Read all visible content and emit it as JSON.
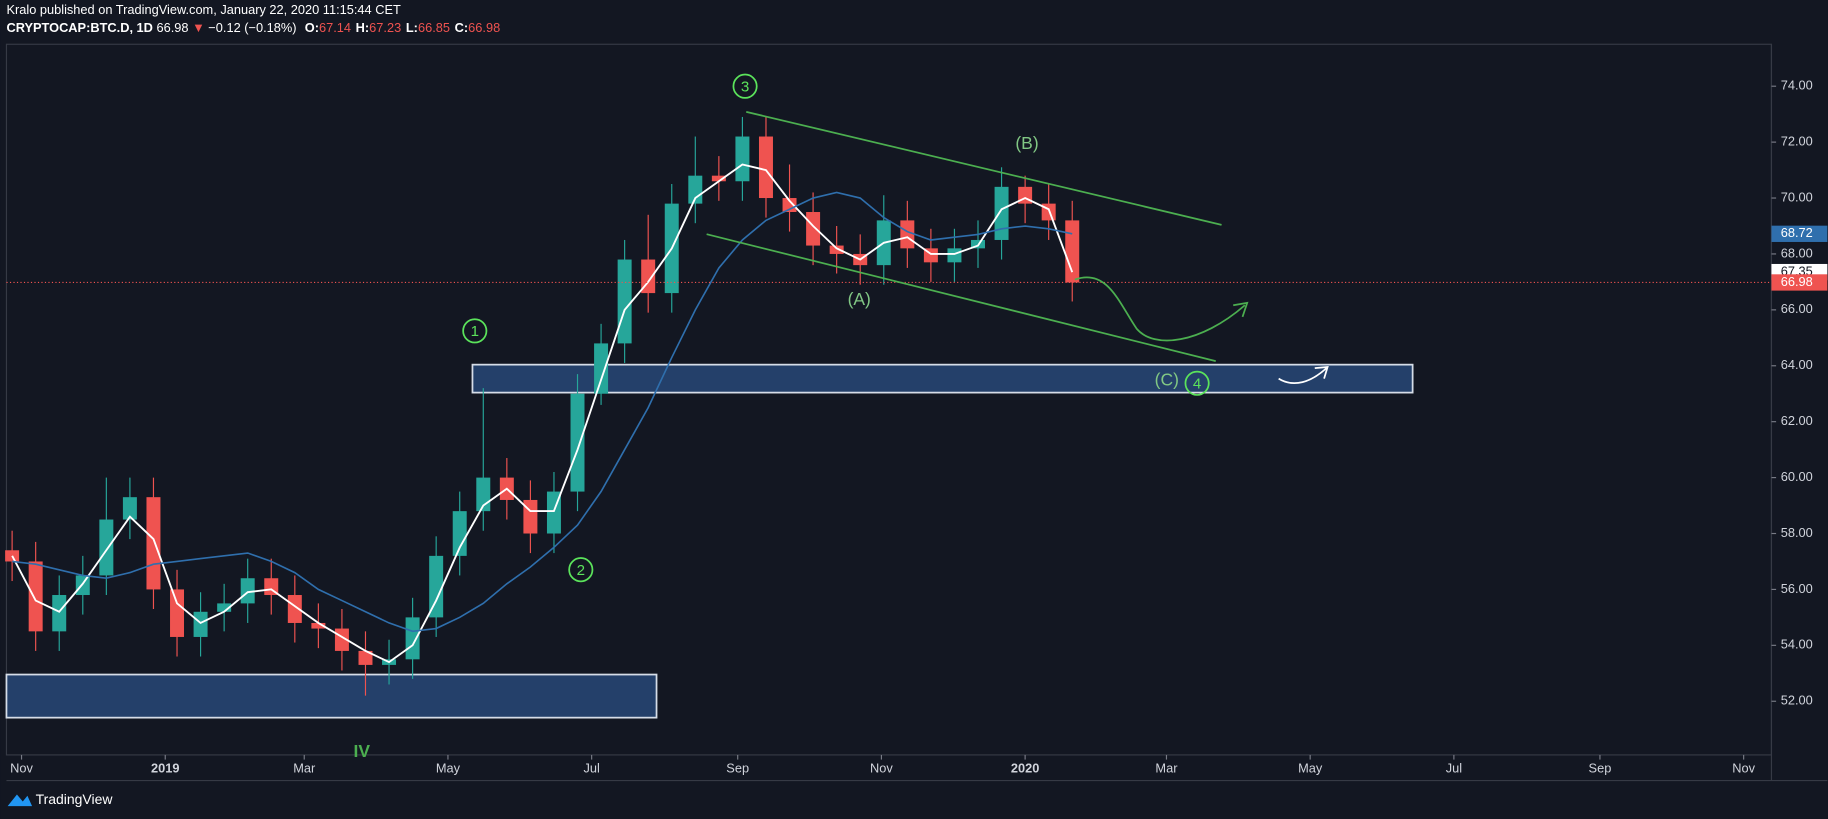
{
  "header": {
    "publisher": "Kralo published on TradingView.com, January 22, 2020 11:15:44 CET",
    "symbol": "CRYPTOCAP:BTC.D, 1D",
    "last": "66.98",
    "arrow": "▼",
    "change": "−0.12 (−0.18%)",
    "ohlc": [
      {
        "label": "O:",
        "value": "67.14"
      },
      {
        "label": "H:",
        "value": "67.23"
      },
      {
        "label": "L:",
        "value": "66.85"
      },
      {
        "label": "C:",
        "value": "66.98"
      }
    ]
  },
  "footer": "TradingView",
  "chart_data": {
    "type": "candlestick",
    "up_color": "#26a69a",
    "down_color": "#ef5350",
    "x": [
      -4,
      6,
      16,
      26,
      36,
      46,
      56,
      66,
      76,
      86,
      96,
      106,
      116,
      126,
      136,
      146,
      156,
      166,
      176,
      186,
      196,
      206,
      216,
      226,
      236,
      246,
      256,
      266,
      276,
      286,
      296,
      306,
      316,
      326,
      336,
      346,
      356,
      366,
      376,
      386,
      396,
      406,
      416,
      426,
      436,
      446
    ],
    "open": [
      57.4,
      57.0,
      54.5,
      55.8,
      56.5,
      58.5,
      59.3,
      56.0,
      54.3,
      55.2,
      55.5,
      56.4,
      55.8,
      54.8,
      54.6,
      53.8,
      53.3,
      53.5,
      55.0,
      57.2,
      58.8,
      60.0,
      59.2,
      58.0,
      59.5,
      63.0,
      64.8,
      67.8,
      66.6,
      69.8,
      70.8,
      70.6,
      72.2,
      70.0,
      69.5,
      68.3,
      68.0,
      67.6,
      69.2,
      68.2,
      67.7,
      68.2,
      68.5,
      70.4,
      69.8,
      69.2
    ],
    "high": [
      58.1,
      57.7,
      56.5,
      57.2,
      60.0,
      60.0,
      60.0,
      56.7,
      55.9,
      56.2,
      57.1,
      57.1,
      56.5,
      55.5,
      55.3,
      54.5,
      54.2,
      55.7,
      57.9,
      59.5,
      63.2,
      60.7,
      59.9,
      60.2,
      63.7,
      65.5,
      68.5,
      69.4,
      70.5,
      72.2,
      71.5,
      72.9,
      72.9,
      71.2,
      70.2,
      69.0,
      68.7,
      70.1,
      69.9,
      68.9,
      68.9,
      69.2,
      71.1,
      70.8,
      70.5,
      69.9
    ],
    "low": [
      56.3,
      53.8,
      53.8,
      55.1,
      55.8,
      57.8,
      55.3,
      53.6,
      53.6,
      54.5,
      54.8,
      55.1,
      54.1,
      53.9,
      53.1,
      52.2,
      52.6,
      52.8,
      54.3,
      56.5,
      58.1,
      58.5,
      57.3,
      57.3,
      58.8,
      62.6,
      64.1,
      65.9,
      65.9,
      69.1,
      69.9,
      69.9,
      69.3,
      68.8,
      67.6,
      67.3,
      66.9,
      66.9,
      67.5,
      67.0,
      67.0,
      67.5,
      67.8,
      69.1,
      68.5,
      66.3
    ],
    "close": [
      57.0,
      54.5,
      55.8,
      56.5,
      58.5,
      59.3,
      56.0,
      54.3,
      55.2,
      55.5,
      56.4,
      55.8,
      54.8,
      54.6,
      53.8,
      53.3,
      53.5,
      55.0,
      57.2,
      58.8,
      60.0,
      59.2,
      58.0,
      59.5,
      63.0,
      64.8,
      67.8,
      66.6,
      69.8,
      70.8,
      70.6,
      72.2,
      70.0,
      69.5,
      68.3,
      68.0,
      67.6,
      69.2,
      68.2,
      67.7,
      68.2,
      68.5,
      70.4,
      69.8,
      69.2,
      66.98
    ],
    "lines": [
      {
        "color": "#ffffff",
        "values": [
          57.2,
          55.6,
          55.2,
          56.2,
          57.4,
          58.6,
          57.8,
          55.5,
          54.8,
          55.2,
          55.9,
          56.0,
          55.4,
          54.8,
          54.3,
          53.8,
          53.4,
          54.0,
          55.6,
          57.5,
          59.0,
          59.6,
          58.8,
          58.8,
          61.0,
          63.5,
          66.0,
          67.0,
          68.2,
          70.0,
          70.6,
          71.2,
          71.0,
          69.9,
          69.0,
          68.2,
          67.8,
          68.4,
          68.6,
          68.0,
          68.0,
          68.3,
          69.6,
          70.0,
          69.6,
          67.35
        ]
      },
      {
        "color": "#2f6fad",
        "values": [
          57.0,
          56.9,
          56.7,
          56.5,
          56.4,
          56.6,
          56.9,
          57.0,
          57.1,
          57.2,
          57.3,
          57.0,
          56.6,
          56.0,
          55.6,
          55.2,
          54.8,
          54.5,
          54.6,
          55.0,
          55.5,
          56.2,
          56.8,
          57.5,
          58.3,
          59.5,
          61.0,
          62.5,
          64.3,
          66.0,
          67.5,
          68.5,
          69.2,
          69.6,
          70.0,
          70.2,
          70.0,
          69.3,
          68.8,
          68.5,
          68.6,
          68.7,
          68.9,
          69.0,
          68.9,
          68.72
        ]
      }
    ],
    "xlim": [
      -6.4,
      742.8
    ],
    "xticks": [
      {
        "value": 0,
        "label": "Nov"
      },
      {
        "value": 61,
        "label": "2019"
      },
      {
        "value": 120,
        "label": "Mar"
      },
      {
        "value": 181,
        "label": "May"
      },
      {
        "value": 242,
        "label": "Jul"
      },
      {
        "value": 304,
        "label": "Sep"
      },
      {
        "value": 365,
        "label": "Nov"
      },
      {
        "value": 426,
        "label": "2020"
      },
      {
        "value": 486,
        "label": "Mar"
      },
      {
        "value": 547,
        "label": "May"
      },
      {
        "value": 608,
        "label": "Jul"
      },
      {
        "value": 670,
        "label": "Sep"
      },
      {
        "value": 731,
        "label": "Nov"
      }
    ],
    "ylim": [
      50.08,
      75.5
    ],
    "yticks": [
      {
        "value": 52,
        "label": "52.00"
      },
      {
        "value": 54,
        "label": "54.00"
      },
      {
        "value": 56,
        "label": "56.00"
      },
      {
        "value": 58,
        "label": "58.00"
      },
      {
        "value": 60,
        "label": "60.00"
      },
      {
        "value": 62,
        "label": "62.00"
      },
      {
        "value": 64,
        "label": "64.00"
      },
      {
        "value": 66,
        "label": "66.00"
      },
      {
        "value": 68,
        "label": "68.00"
      },
      {
        "value": 70,
        "label": "70.00"
      },
      {
        "value": 72,
        "label": "72.00"
      },
      {
        "value": 74,
        "label": "74.00"
      }
    ],
    "grid": false,
    "annotations": [
      "3",
      "1",
      "2",
      "4",
      "(A)",
      "(B)",
      "(C)",
      "IV"
    ]
  }
}
